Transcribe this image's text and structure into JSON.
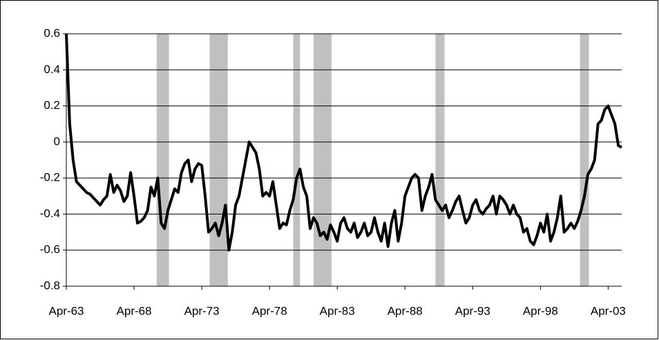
{
  "chart_data": {
    "type": "line",
    "x": [
      1963.25,
      1963.5,
      1963.75,
      1964,
      1964.25,
      1964.5,
      1964.75,
      1965,
      1965.25,
      1965.5,
      1965.75,
      1966,
      1966.25,
      1966.5,
      1966.75,
      1967,
      1967.25,
      1967.5,
      1967.75,
      1968,
      1968.25,
      1968.5,
      1968.75,
      1969,
      1969.25,
      1969.5,
      1969.75,
      1970,
      1970.25,
      1970.5,
      1970.75,
      1971,
      1971.25,
      1971.5,
      1971.75,
      1972,
      1972.25,
      1972.5,
      1972.75,
      1973,
      1973.25,
      1973.5,
      1973.75,
      1974,
      1974.25,
      1974.5,
      1974.75,
      1975,
      1975.25,
      1975.5,
      1975.75,
      1976,
      1976.25,
      1976.5,
      1976.75,
      1977,
      1977.25,
      1977.5,
      1977.75,
      1978,
      1978.25,
      1978.5,
      1978.75,
      1979,
      1979.25,
      1979.5,
      1979.75,
      1980,
      1980.25,
      1980.5,
      1980.75,
      1981,
      1981.25,
      1981.5,
      1981.75,
      1982,
      1982.25,
      1982.5,
      1982.75,
      1983,
      1983.25,
      1983.5,
      1983.75,
      1984,
      1984.25,
      1984.5,
      1984.75,
      1985,
      1985.25,
      1985.5,
      1985.75,
      1986,
      1986.25,
      1986.5,
      1986.75,
      1987,
      1987.25,
      1987.5,
      1987.75,
      1988,
      1988.25,
      1988.5,
      1988.75,
      1989,
      1989.25,
      1989.5,
      1989.75,
      1990,
      1990.25,
      1990.5,
      1990.75,
      1991,
      1991.25,
      1991.5,
      1991.75,
      1992,
      1992.25,
      1992.5,
      1992.75,
      1993,
      1993.25,
      1993.5,
      1993.75,
      1994,
      1994.25,
      1994.5,
      1994.75,
      1995,
      1995.25,
      1995.5,
      1995.75,
      1996,
      1996.25,
      1996.5,
      1996.75,
      1997,
      1997.25,
      1997.5,
      1997.75,
      1998,
      1998.25,
      1998.5,
      1998.75,
      1999,
      1999.25,
      1999.5,
      1999.75,
      2000,
      2000.25,
      2000.5,
      2000.75,
      2001,
      2001.25,
      2001.5,
      2001.75,
      2002,
      2002.25,
      2002.5,
      2002.75,
      2003,
      2003.25,
      2003.5,
      2003.75,
      2004,
      2004.25
    ],
    "series": [
      {
        "color": "#000000",
        "values": [
          0.6,
          0.1,
          -0.1,
          -0.22,
          -0.24,
          -0.26,
          -0.28,
          -0.29,
          -0.31,
          -0.33,
          -0.35,
          -0.32,
          -0.3,
          -0.18,
          -0.28,
          -0.24,
          -0.27,
          -0.33,
          -0.3,
          -0.17,
          -0.3,
          -0.45,
          -0.44,
          -0.42,
          -0.38,
          -0.25,
          -0.3,
          -0.2,
          -0.45,
          -0.48,
          -0.38,
          -0.32,
          -0.26,
          -0.28,
          -0.17,
          -0.12,
          -0.1,
          -0.22,
          -0.15,
          -0.12,
          -0.13,
          -0.3,
          -0.5,
          -0.48,
          -0.45,
          -0.52,
          -0.45,
          -0.35,
          -0.6,
          -0.5,
          -0.35,
          -0.3,
          -0.2,
          -0.1,
          0,
          -0.03,
          -0.06,
          -0.15,
          -0.3,
          -0.28,
          -0.3,
          -0.22,
          -0.35,
          -0.48,
          -0.45,
          -0.46,
          -0.38,
          -0.32,
          -0.2,
          -0.15,
          -0.25,
          -0.3,
          -0.48,
          -0.42,
          -0.45,
          -0.52,
          -0.5,
          -0.54,
          -0.46,
          -0.5,
          -0.55,
          -0.45,
          -0.42,
          -0.48,
          -0.5,
          -0.45,
          -0.53,
          -0.5,
          -0.45,
          -0.52,
          -0.5,
          -0.42,
          -0.5,
          -0.55,
          -0.45,
          -0.58,
          -0.45,
          -0.38,
          -0.55,
          -0.45,
          -0.3,
          -0.25,
          -0.2,
          -0.18,
          -0.2,
          -0.38,
          -0.3,
          -0.25,
          -0.18,
          -0.32,
          -0.35,
          -0.38,
          -0.35,
          -0.42,
          -0.38,
          -0.33,
          -0.3,
          -0.38,
          -0.45,
          -0.42,
          -0.35,
          -0.32,
          -0.38,
          -0.4,
          -0.37,
          -0.35,
          -0.3,
          -0.4,
          -0.3,
          -0.32,
          -0.35,
          -0.4,
          -0.35,
          -0.4,
          -0.42,
          -0.5,
          -0.48,
          -0.55,
          -0.57,
          -0.52,
          -0.45,
          -0.5,
          -0.4,
          -0.55,
          -0.5,
          -0.42,
          -0.3,
          -0.5,
          -0.48,
          -0.45,
          -0.48,
          -0.44,
          -0.38,
          -0.3,
          -0.18,
          -0.15,
          -0.1,
          0.1,
          0.12,
          0.18,
          0.2,
          0.15,
          0.1,
          -0.02,
          -0.03
        ]
      }
    ],
    "shaded_ranges": [
      [
        1969.92,
        1970.83
      ],
      [
        1973.83,
        1975.17
      ],
      [
        1980.0,
        1980.5
      ],
      [
        1981.5,
        1982.83
      ],
      [
        1990.5,
        1991.17
      ],
      [
        2001.17,
        2001.83
      ]
    ],
    "shade_color": "#c0c0c0",
    "xlim": [
      1963.25,
      2004.25
    ],
    "xticks": [
      {
        "value": 1963.25,
        "label": "Apr-63"
      },
      {
        "value": 1968.25,
        "label": "Apr-68"
      },
      {
        "value": 1973.25,
        "label": "Apr-73"
      },
      {
        "value": 1978.25,
        "label": "Apr-78"
      },
      {
        "value": 1983.25,
        "label": "Apr-83"
      },
      {
        "value": 1988.25,
        "label": "Apr-88"
      },
      {
        "value": 1993.25,
        "label": "Apr-93"
      },
      {
        "value": 1998.25,
        "label": "Apr-98"
      },
      {
        "value": 2003.25,
        "label": "Apr-03"
      }
    ],
    "ylim": [
      -0.8,
      0.6
    ],
    "yticks": [
      -0.8,
      -0.6,
      -0.4,
      -0.2,
      0,
      0.2,
      0.4,
      0.6
    ],
    "grid": true
  }
}
